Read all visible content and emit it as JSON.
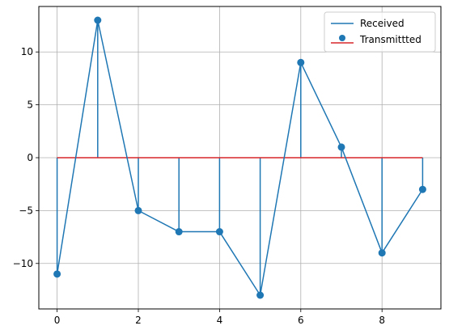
{
  "chart_data": {
    "type": "line",
    "x": [
      0,
      1,
      2,
      3,
      4,
      5,
      6,
      7,
      8,
      9
    ],
    "series": [
      {
        "name": "Received",
        "kind": "line",
        "color": "#1f77b4",
        "values": [
          -11,
          13,
          -5,
          -7,
          -7,
          -13,
          9,
          1,
          -9,
          -3
        ]
      },
      {
        "name": "Transmittted",
        "kind": "stem",
        "color": "#1f77b4",
        "baseline_color": "#d62728",
        "values": [
          -11,
          13,
          -5,
          -7,
          -7,
          -13,
          9,
          1,
          -9,
          -3
        ]
      }
    ],
    "xlim": [
      -0.45,
      9.45
    ],
    "ylim": [
      -14.3,
      14.3
    ],
    "xticks": [
      0,
      2,
      4,
      6,
      8
    ],
    "yticks": [
      -10,
      -5,
      0,
      5,
      10
    ],
    "xtick_labels": [
      "0",
      "2",
      "4",
      "6",
      "8"
    ],
    "ytick_labels": [
      "−10",
      "−5",
      "0",
      "5",
      "10"
    ],
    "grid": true,
    "legend_position": "top-right",
    "title": "",
    "xlabel": "",
    "ylabel": ""
  }
}
